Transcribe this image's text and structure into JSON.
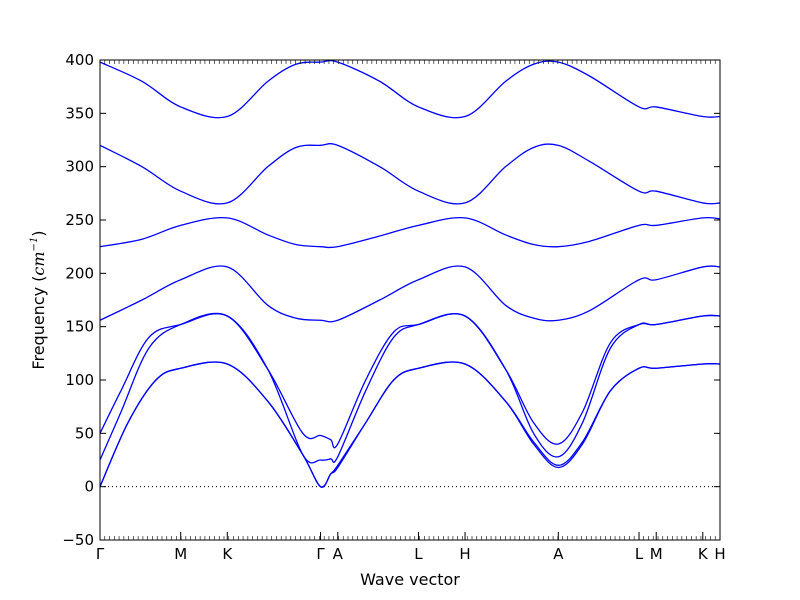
{
  "chart_data": {
    "type": "line",
    "xlabel": "Wave vector",
    "ylabel_text": "Frequency (",
    "ylabel_unit": "cm",
    "ylabel_exp": "−1",
    "ylabel_close": ")",
    "ylim": [
      -50,
      400
    ],
    "y_ticks": [
      -50,
      0,
      50,
      100,
      150,
      200,
      250,
      300,
      350,
      400
    ],
    "y_tick_labels": [
      "−50",
      "0",
      "50",
      "100",
      "150",
      "200",
      "250",
      "300",
      "350",
      "400"
    ],
    "x_ticks": [
      {
        "label": "Γ",
        "x": 0.0
      },
      {
        "label": "M",
        "x": 0.577
      },
      {
        "label": "K",
        "x": 0.91
      },
      {
        "label": "Γ",
        "x": 1.577
      },
      {
        "label": "A",
        "x": 1.7
      },
      {
        "label": "L",
        "x": 2.277
      },
      {
        "label": "H",
        "x": 2.61
      },
      {
        "label": "A",
        "x": 3.277
      },
      {
        "label": "L",
        "x": 3.854
      },
      {
        "label": "M",
        "x": 3.977
      },
      {
        "label": "K",
        "x": 4.31
      },
      {
        "label": "H",
        "x": 4.433
      }
    ],
    "xlim": [
      0.0,
      4.433
    ],
    "zero_line": true,
    "line_color": "#0000ff",
    "series": [
      {
        "points": [
          [
            0,
            0
          ],
          [
            0.2,
            60
          ],
          [
            0.4,
            100
          ],
          [
            0.577,
            111
          ],
          [
            0.91,
            115
          ],
          [
            1.2,
            80
          ],
          [
            1.45,
            30
          ],
          [
            1.577,
            0
          ],
          [
            1.65,
            12
          ],
          [
            1.7,
            18
          ],
          [
            1.9,
            60
          ],
          [
            2.1,
            100
          ],
          [
            2.277,
            111
          ],
          [
            2.61,
            115
          ],
          [
            2.9,
            80
          ],
          [
            3.1,
            40
          ],
          [
            3.277,
            18
          ],
          [
            3.45,
            40
          ],
          [
            3.65,
            90
          ],
          [
            3.854,
            111
          ],
          [
            3.977,
            111
          ],
          [
            4.31,
            115
          ],
          [
            4.433,
            115
          ]
        ]
      },
      {
        "points": [
          [
            0,
            0
          ],
          [
            0.2,
            60
          ],
          [
            0.4,
            100
          ],
          [
            0.577,
            111
          ],
          [
            0.91,
            115
          ],
          [
            1.2,
            80
          ],
          [
            1.45,
            30
          ],
          [
            1.577,
            0
          ],
          [
            1.65,
            12
          ],
          [
            1.7,
            20
          ],
          [
            1.9,
            60
          ],
          [
            2.1,
            100
          ],
          [
            2.277,
            111
          ],
          [
            2.61,
            115
          ],
          [
            2.9,
            80
          ],
          [
            3.1,
            42
          ],
          [
            3.277,
            20
          ],
          [
            3.45,
            42
          ],
          [
            3.65,
            90
          ],
          [
            3.854,
            111
          ],
          [
            3.977,
            111
          ],
          [
            4.31,
            115
          ],
          [
            4.433,
            115
          ]
        ]
      },
      {
        "points": [
          [
            0,
            25
          ],
          [
            0.15,
            70
          ],
          [
            0.35,
            130
          ],
          [
            0.577,
            152
          ],
          [
            0.91,
            160
          ],
          [
            1.2,
            110
          ],
          [
            1.45,
            30
          ],
          [
            1.577,
            25
          ],
          [
            1.65,
            26
          ],
          [
            1.7,
            28
          ],
          [
            1.9,
            90
          ],
          [
            2.1,
            140
          ],
          [
            2.277,
            152
          ],
          [
            2.61,
            160
          ],
          [
            2.9,
            110
          ],
          [
            3.1,
            50
          ],
          [
            3.277,
            28
          ],
          [
            3.45,
            60
          ],
          [
            3.65,
            130
          ],
          [
            3.854,
            152
          ],
          [
            3.977,
            152
          ],
          [
            4.31,
            160
          ],
          [
            4.433,
            160
          ]
        ]
      },
      {
        "points": [
          [
            0,
            50
          ],
          [
            0.15,
            90
          ],
          [
            0.35,
            140
          ],
          [
            0.577,
            152
          ],
          [
            0.91,
            160
          ],
          [
            1.2,
            110
          ],
          [
            1.45,
            50
          ],
          [
            1.577,
            48
          ],
          [
            1.65,
            44
          ],
          [
            1.7,
            40
          ],
          [
            1.9,
            100
          ],
          [
            2.1,
            145
          ],
          [
            2.277,
            152
          ],
          [
            2.61,
            160
          ],
          [
            2.9,
            110
          ],
          [
            3.1,
            60
          ],
          [
            3.277,
            40
          ],
          [
            3.45,
            70
          ],
          [
            3.65,
            135
          ],
          [
            3.854,
            152
          ],
          [
            3.977,
            152
          ],
          [
            4.31,
            160
          ],
          [
            4.433,
            160
          ]
        ]
      },
      {
        "points": [
          [
            0,
            156
          ],
          [
            0.3,
            175
          ],
          [
            0.577,
            194
          ],
          [
            0.91,
            206
          ],
          [
            1.2,
            170
          ],
          [
            1.4,
            158
          ],
          [
            1.577,
            156
          ],
          [
            1.7,
            156
          ],
          [
            2.0,
            175
          ],
          [
            2.277,
            194
          ],
          [
            2.61,
            206
          ],
          [
            2.9,
            170
          ],
          [
            3.1,
            158
          ],
          [
            3.277,
            156
          ],
          [
            3.5,
            165
          ],
          [
            3.854,
            194
          ],
          [
            3.977,
            194
          ],
          [
            4.31,
            206
          ],
          [
            4.433,
            206
          ]
        ]
      },
      {
        "points": [
          [
            0,
            225
          ],
          [
            0.3,
            232
          ],
          [
            0.577,
            245
          ],
          [
            0.91,
            252
          ],
          [
            1.2,
            236
          ],
          [
            1.4,
            227
          ],
          [
            1.577,
            225
          ],
          [
            1.7,
            225
          ],
          [
            2.0,
            235
          ],
          [
            2.277,
            245
          ],
          [
            2.61,
            252
          ],
          [
            2.9,
            236
          ],
          [
            3.1,
            227
          ],
          [
            3.277,
            225
          ],
          [
            3.5,
            230
          ],
          [
            3.854,
            245
          ],
          [
            3.977,
            245
          ],
          [
            4.31,
            252
          ],
          [
            4.433,
            251
          ]
        ]
      },
      {
        "points": [
          [
            0,
            320
          ],
          [
            0.3,
            300
          ],
          [
            0.577,
            277
          ],
          [
            0.91,
            266
          ],
          [
            1.2,
            300
          ],
          [
            1.4,
            318
          ],
          [
            1.577,
            320
          ],
          [
            1.7,
            320
          ],
          [
            2.0,
            300
          ],
          [
            2.277,
            277
          ],
          [
            2.61,
            266
          ],
          [
            2.9,
            300
          ],
          [
            3.1,
            318
          ],
          [
            3.277,
            320
          ],
          [
            3.5,
            305
          ],
          [
            3.854,
            277
          ],
          [
            3.977,
            277
          ],
          [
            4.31,
            266
          ],
          [
            4.433,
            266
          ]
        ]
      },
      {
        "points": [
          [
            0,
            398
          ],
          [
            0.3,
            380
          ],
          [
            0.577,
            356
          ],
          [
            0.91,
            347
          ],
          [
            1.2,
            380
          ],
          [
            1.4,
            396
          ],
          [
            1.577,
            398
          ],
          [
            1.7,
            398
          ],
          [
            2.0,
            380
          ],
          [
            2.277,
            356
          ],
          [
            2.61,
            347
          ],
          [
            2.9,
            380
          ],
          [
            3.1,
            396
          ],
          [
            3.277,
            398
          ],
          [
            3.5,
            385
          ],
          [
            3.854,
            356
          ],
          [
            3.977,
            356
          ],
          [
            4.31,
            347
          ],
          [
            4.433,
            347
          ]
        ]
      }
    ]
  }
}
